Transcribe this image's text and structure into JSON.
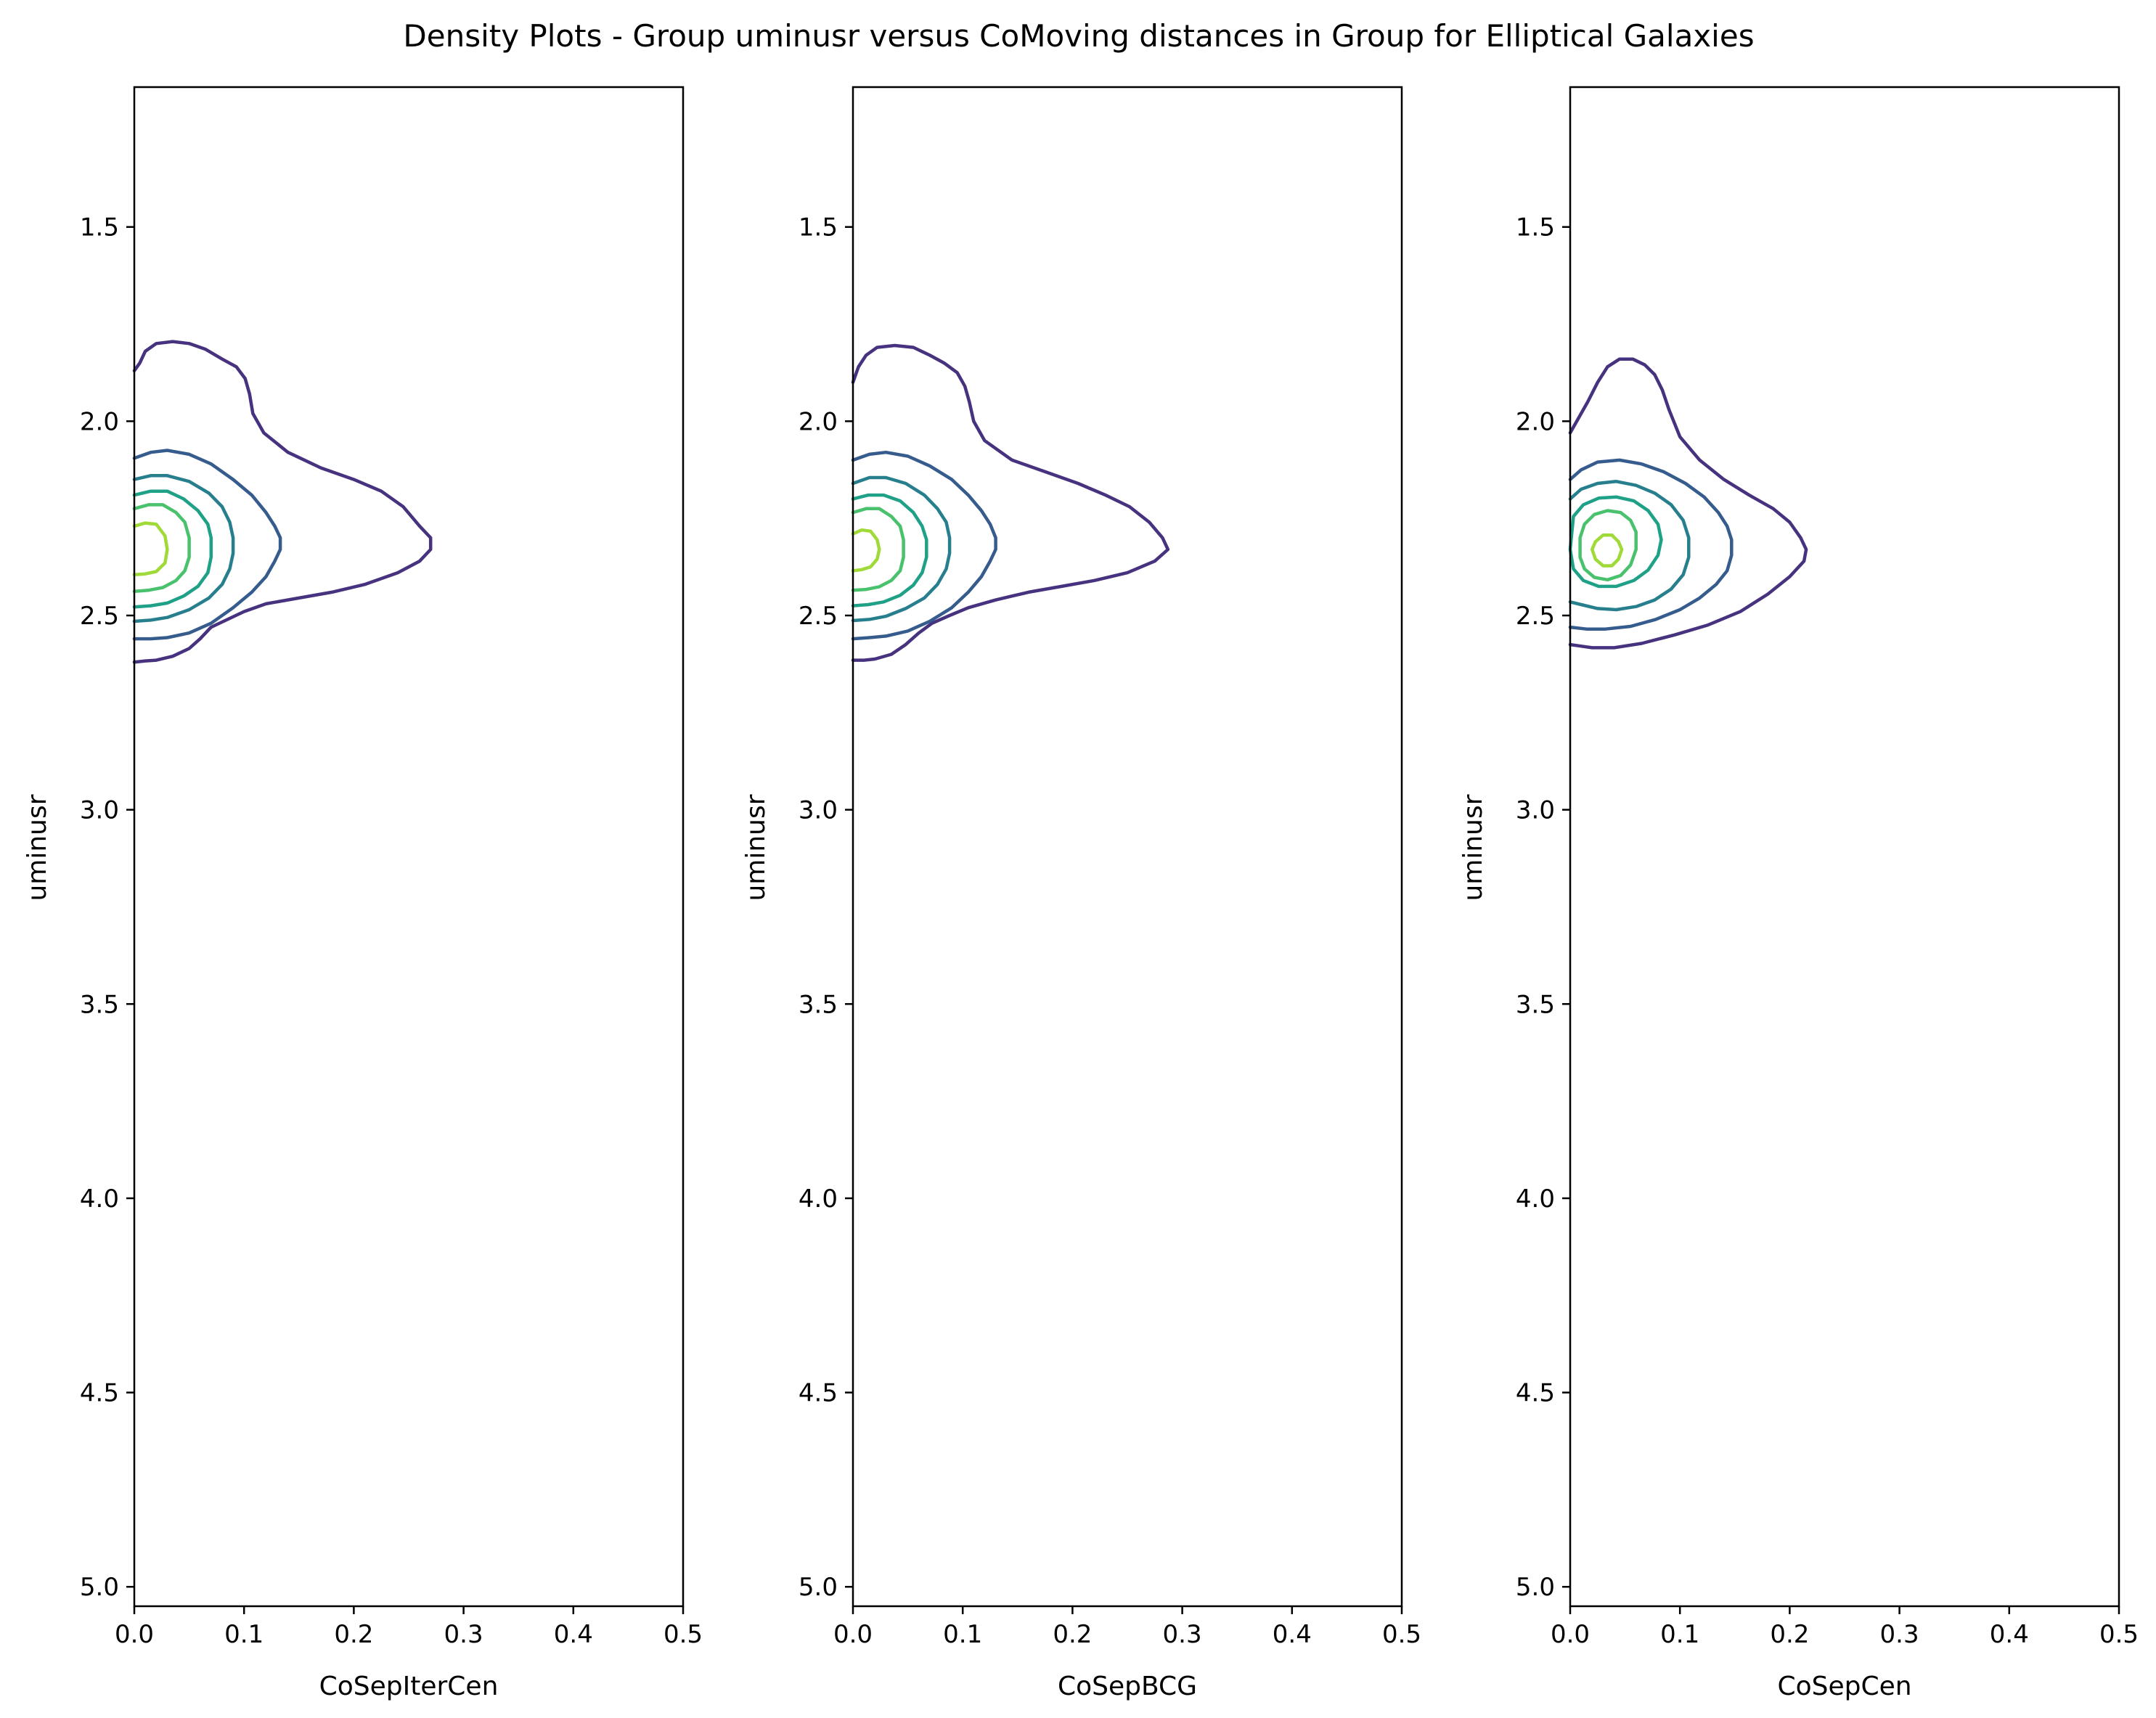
{
  "figure": {
    "title": "Density Plots - Group uminusr versus CoMoving distances in Group for Elliptical Galaxies"
  },
  "level_colors": [
    "#46327e",
    "#365c8d",
    "#277f8e",
    "#1fa187",
    "#4ac16d",
    "#a0da39"
  ],
  "chart_data": [
    {
      "type": "contour",
      "xlabel": "CoSepIterCen",
      "ylabel": "uminusr",
      "xlim": [
        0.0,
        0.5
      ],
      "ylim": [
        5.05,
        1.14
      ],
      "y_inverted": true,
      "xticks": [
        "0.0",
        "0.1",
        "0.2",
        "0.3",
        "0.4",
        "0.5"
      ],
      "yticks": [
        "1.5",
        "2.0",
        "2.5",
        "3.0",
        "3.5",
        "4.0",
        "4.5",
        "5.0"
      ],
      "contours": [
        {
          "level": 1,
          "x": [
            0.0,
            0.005,
            0.01,
            0.02,
            0.035,
            0.05,
            0.065,
            0.08,
            0.093,
            0.101,
            0.105,
            0.108,
            0.118,
            0.14,
            0.17,
            0.2,
            0.225,
            0.245,
            0.26,
            0.27,
            0.27,
            0.26,
            0.24,
            0.21,
            0.18,
            0.15,
            0.12,
            0.1,
            0.085,
            0.07,
            0.06,
            0.05,
            0.035,
            0.02,
            0.01,
            0.0
          ],
          "y": [
            1.87,
            1.85,
            1.82,
            1.8,
            1.795,
            1.8,
            1.815,
            1.84,
            1.86,
            1.89,
            1.93,
            1.98,
            2.03,
            2.08,
            2.12,
            2.15,
            2.18,
            2.22,
            2.27,
            2.3,
            2.33,
            2.36,
            2.39,
            2.42,
            2.44,
            2.455,
            2.47,
            2.49,
            2.51,
            2.53,
            2.56,
            2.585,
            2.605,
            2.615,
            2.617,
            2.62
          ]
        },
        {
          "level": 2,
          "x": [
            0.0,
            0.015,
            0.03,
            0.05,
            0.07,
            0.09,
            0.107,
            0.12,
            0.128,
            0.133,
            0.133,
            0.128,
            0.12,
            0.107,
            0.09,
            0.07,
            0.05,
            0.03,
            0.015,
            0.0
          ],
          "y": [
            2.095,
            2.08,
            2.075,
            2.085,
            2.11,
            2.15,
            2.19,
            2.235,
            2.27,
            2.3,
            2.33,
            2.36,
            2.4,
            2.44,
            2.48,
            2.52,
            2.545,
            2.557,
            2.56,
            2.56
          ]
        },
        {
          "level": 3,
          "x": [
            0.0,
            0.015,
            0.03,
            0.05,
            0.068,
            0.08,
            0.087,
            0.09,
            0.09,
            0.087,
            0.08,
            0.068,
            0.05,
            0.03,
            0.015,
            0.0
          ],
          "y": [
            2.15,
            2.14,
            2.14,
            2.155,
            2.185,
            2.22,
            2.26,
            2.3,
            2.34,
            2.38,
            2.42,
            2.455,
            2.485,
            2.505,
            2.512,
            2.515
          ]
        },
        {
          "level": 4,
          "x": [
            0.0,
            0.015,
            0.03,
            0.045,
            0.058,
            0.067,
            0.07,
            0.07,
            0.067,
            0.058,
            0.045,
            0.03,
            0.015,
            0.0
          ],
          "y": [
            2.19,
            2.18,
            2.18,
            2.2,
            2.23,
            2.265,
            2.3,
            2.35,
            2.39,
            2.425,
            2.45,
            2.468,
            2.475,
            2.478
          ]
        },
        {
          "level": 5,
          "x": [
            0.0,
            0.013,
            0.026,
            0.038,
            0.046,
            0.05,
            0.05,
            0.046,
            0.038,
            0.026,
            0.013,
            0.0
          ],
          "y": [
            2.225,
            2.215,
            2.215,
            2.235,
            2.26,
            2.3,
            2.35,
            2.385,
            2.41,
            2.428,
            2.435,
            2.438
          ]
        },
        {
          "level": 6,
          "x": [
            0.0,
            0.01,
            0.02,
            0.028,
            0.03,
            0.028,
            0.02,
            0.01,
            0.0
          ],
          "y": [
            2.27,
            2.262,
            2.265,
            2.295,
            2.33,
            2.365,
            2.387,
            2.393,
            2.395
          ]
        }
      ]
    },
    {
      "type": "contour",
      "xlabel": "CoSepBCG",
      "ylabel": "uminusr",
      "xlim": [
        0.0,
        0.5
      ],
      "ylim": [
        5.05,
        1.14
      ],
      "y_inverted": true,
      "xticks": [
        "0.0",
        "0.1",
        "0.2",
        "0.3",
        "0.4",
        "0.5"
      ],
      "yticks": [
        "1.5",
        "2.0",
        "2.5",
        "3.0",
        "3.5",
        "4.0",
        "4.5",
        "5.0"
      ],
      "contours": [
        {
          "level": 1,
          "x": [
            0.0,
            0.005,
            0.012,
            0.022,
            0.038,
            0.055,
            0.07,
            0.083,
            0.095,
            0.102,
            0.106,
            0.11,
            0.12,
            0.145,
            0.175,
            0.205,
            0.23,
            0.252,
            0.27,
            0.282,
            0.287,
            0.275,
            0.25,
            0.22,
            0.19,
            0.16,
            0.13,
            0.105,
            0.088,
            0.072,
            0.06,
            0.048,
            0.035,
            0.02,
            0.01,
            0.0
          ],
          "y": [
            1.9,
            1.86,
            1.83,
            1.81,
            1.805,
            1.81,
            1.83,
            1.85,
            1.875,
            1.91,
            1.95,
            2.0,
            2.05,
            2.1,
            2.13,
            2.16,
            2.19,
            2.22,
            2.26,
            2.3,
            2.33,
            2.36,
            2.39,
            2.41,
            2.425,
            2.44,
            2.46,
            2.48,
            2.5,
            2.52,
            2.545,
            2.575,
            2.6,
            2.612,
            2.615,
            2.615
          ]
        },
        {
          "level": 2,
          "x": [
            0.0,
            0.015,
            0.03,
            0.05,
            0.07,
            0.09,
            0.105,
            0.117,
            0.125,
            0.13,
            0.13,
            0.125,
            0.117,
            0.105,
            0.09,
            0.07,
            0.05,
            0.03,
            0.015,
            0.0
          ],
          "y": [
            2.1,
            2.085,
            2.08,
            2.09,
            2.115,
            2.15,
            2.19,
            2.23,
            2.265,
            2.3,
            2.33,
            2.36,
            2.4,
            2.44,
            2.48,
            2.515,
            2.54,
            2.553,
            2.557,
            2.56
          ]
        },
        {
          "level": 3,
          "x": [
            0.0,
            0.015,
            0.03,
            0.048,
            0.065,
            0.077,
            0.085,
            0.088,
            0.088,
            0.085,
            0.077,
            0.065,
            0.048,
            0.03,
            0.015,
            0.0
          ],
          "y": [
            2.16,
            2.145,
            2.145,
            2.16,
            2.19,
            2.225,
            2.26,
            2.3,
            2.34,
            2.38,
            2.42,
            2.455,
            2.482,
            2.502,
            2.51,
            2.513
          ]
        },
        {
          "level": 4,
          "x": [
            0.0,
            0.014,
            0.028,
            0.043,
            0.055,
            0.063,
            0.067,
            0.067,
            0.063,
            0.055,
            0.043,
            0.028,
            0.014,
            0.0
          ],
          "y": [
            2.2,
            2.19,
            2.19,
            2.205,
            2.235,
            2.27,
            2.305,
            2.35,
            2.39,
            2.422,
            2.448,
            2.465,
            2.472,
            2.475
          ]
        },
        {
          "level": 5,
          "x": [
            0.0,
            0.012,
            0.024,
            0.035,
            0.043,
            0.046,
            0.046,
            0.043,
            0.035,
            0.024,
            0.012,
            0.0
          ],
          "y": [
            2.235,
            2.225,
            2.225,
            2.245,
            2.27,
            2.305,
            2.35,
            2.385,
            2.41,
            2.426,
            2.433,
            2.435
          ]
        },
        {
          "level": 6,
          "x": [
            0.0,
            0.008,
            0.016,
            0.022,
            0.024,
            0.022,
            0.016,
            0.008,
            0.0
          ],
          "y": [
            2.29,
            2.28,
            2.283,
            2.305,
            2.33,
            2.355,
            2.375,
            2.382,
            2.385
          ]
        }
      ]
    },
    {
      "type": "contour",
      "xlabel": "CoSepCen",
      "ylabel": "uminusr",
      "xlim": [
        0.0,
        0.5
      ],
      "ylim": [
        5.05,
        1.14
      ],
      "y_inverted": true,
      "xticks": [
        "0.0",
        "0.1",
        "0.2",
        "0.3",
        "0.4",
        "0.5"
      ],
      "yticks": [
        "1.5",
        "2.0",
        "2.5",
        "3.0",
        "3.5",
        "4.0",
        "4.5",
        "5.0"
      ],
      "contours": [
        {
          "level": 1,
          "x": [
            0.0,
            0.008,
            0.016,
            0.025,
            0.034,
            0.045,
            0.057,
            0.068,
            0.077,
            0.084,
            0.09,
            0.1,
            0.118,
            0.14,
            0.163,
            0.185,
            0.2,
            0.21,
            0.215,
            0.213,
            0.2,
            0.18,
            0.155,
            0.125,
            0.095,
            0.065,
            0.04,
            0.02,
            0.008,
            0.0
          ],
          "y": [
            2.03,
            1.99,
            1.95,
            1.9,
            1.86,
            1.84,
            1.84,
            1.855,
            1.88,
            1.92,
            1.97,
            2.04,
            2.1,
            2.15,
            2.19,
            2.225,
            2.26,
            2.3,
            2.33,
            2.36,
            2.4,
            2.445,
            2.49,
            2.525,
            2.55,
            2.572,
            2.583,
            2.583,
            2.578,
            2.575
          ]
        },
        {
          "level": 2,
          "x": [
            0.0,
            0.01,
            0.025,
            0.045,
            0.065,
            0.085,
            0.105,
            0.122,
            0.135,
            0.143,
            0.147,
            0.147,
            0.143,
            0.133,
            0.118,
            0.1,
            0.078,
            0.055,
            0.032,
            0.015,
            0.0
          ],
          "y": [
            2.15,
            2.125,
            2.105,
            2.1,
            2.11,
            2.13,
            2.16,
            2.195,
            2.235,
            2.27,
            2.305,
            2.345,
            2.385,
            2.42,
            2.455,
            2.485,
            2.51,
            2.528,
            2.535,
            2.535,
            2.53
          ]
        },
        {
          "level": 3,
          "x": [
            0.0,
            0.01,
            0.025,
            0.042,
            0.06,
            0.077,
            0.092,
            0.103,
            0.108,
            0.108,
            0.103,
            0.092,
            0.077,
            0.06,
            0.042,
            0.025,
            0.01,
            0.0
          ],
          "y": [
            2.2,
            2.175,
            2.16,
            2.155,
            2.165,
            2.185,
            2.215,
            2.255,
            2.3,
            2.35,
            2.395,
            2.432,
            2.46,
            2.477,
            2.485,
            2.482,
            2.472,
            2.465
          ]
        },
        {
          "level": 4,
          "x": [
            0.003,
            0.012,
            0.026,
            0.042,
            0.058,
            0.071,
            0.08,
            0.083,
            0.08,
            0.071,
            0.058,
            0.042,
            0.026,
            0.012,
            0.003,
            0.0,
            0.003
          ],
          "y": [
            2.245,
            2.215,
            2.198,
            2.195,
            2.205,
            2.23,
            2.265,
            2.305,
            2.345,
            2.383,
            2.41,
            2.425,
            2.425,
            2.41,
            2.38,
            2.33,
            2.245
          ]
        },
        {
          "level": 5,
          "x": [
            0.013,
            0.022,
            0.034,
            0.046,
            0.055,
            0.06,
            0.06,
            0.055,
            0.046,
            0.034,
            0.022,
            0.013,
            0.009,
            0.009,
            0.013
          ],
          "y": [
            2.265,
            2.24,
            2.23,
            2.235,
            2.255,
            2.285,
            2.33,
            2.37,
            2.397,
            2.408,
            2.402,
            2.38,
            2.35,
            2.3,
            2.265
          ]
        },
        {
          "level": 6,
          "x": [
            0.023,
            0.03,
            0.038,
            0.044,
            0.047,
            0.044,
            0.038,
            0.03,
            0.023,
            0.02,
            0.023
          ],
          "y": [
            2.31,
            2.293,
            2.293,
            2.31,
            2.33,
            2.355,
            2.372,
            2.372,
            2.355,
            2.33,
            2.31
          ]
        }
      ]
    }
  ]
}
